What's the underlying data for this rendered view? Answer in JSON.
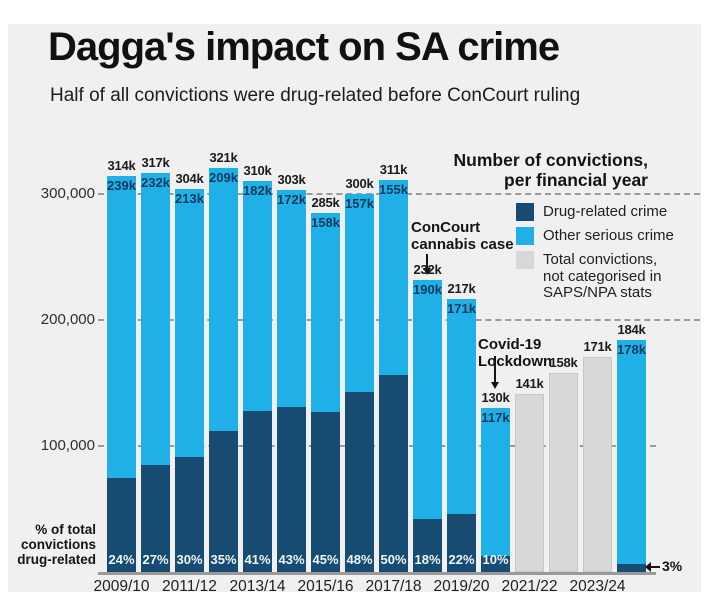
{
  "header": {
    "title": "Dagga's impact on SA crime",
    "subtitle": "Half of all convictions were drug-related before ConCourt ruling"
  },
  "chart_data": {
    "type": "bar",
    "stacked": true,
    "title": "Number of convictions,\nper financial year",
    "ylim": [
      0,
      330000
    ],
    "grid": "dashed-horizontal",
    "legend_position": "top-right",
    "colors": {
      "drug": "#174b72",
      "other": "#1fb0e8",
      "uncategorised": "#d8d8d8"
    },
    "legend": [
      {
        "label": "Drug-related crime",
        "color": "#174b72"
      },
      {
        "label": "Other serious crime",
        "color": "#1fb0e8"
      },
      {
        "label": "Total convictions,\nnot categorised in\nSAPS/NPA stats",
        "color": "#d8d8d8"
      }
    ],
    "y_ticks": [
      {
        "label": "300,000",
        "value": 300000
      },
      {
        "label": "200,000",
        "value": 200000
      },
      {
        "label": "100,000",
        "value": 100000
      }
    ],
    "x_tick_labels": [
      "2009/10",
      "2011/12",
      "2013/14",
      "2015/16",
      "2017/18",
      "2019/20",
      "2021/22",
      "2023/24"
    ],
    "left_axis_note": "% of total\nconvictions\ndrug-related",
    "bars": [
      {
        "kind": "split",
        "total": 314000,
        "total_label": "314k",
        "other": 239000,
        "other_label": "239k",
        "pct_label": "24%"
      },
      {
        "kind": "split",
        "total": 317000,
        "total_label": "317k",
        "other": 232000,
        "other_label": "232k",
        "pct_label": "27%"
      },
      {
        "kind": "split",
        "total": 304000,
        "total_label": "304k",
        "other": 213000,
        "other_label": "213k",
        "pct_label": "30%"
      },
      {
        "kind": "split",
        "total": 321000,
        "total_label": "321k",
        "other": 209000,
        "other_label": "209k",
        "pct_label": "35%"
      },
      {
        "kind": "split",
        "total": 310000,
        "total_label": "310k",
        "other": 182000,
        "other_label": "182k",
        "pct_label": "41%"
      },
      {
        "kind": "split",
        "total": 303000,
        "total_label": "303k",
        "other": 172000,
        "other_label": "172k",
        "pct_label": "43%"
      },
      {
        "kind": "split",
        "total": 285000,
        "total_label": "285k",
        "other": 158000,
        "other_label": "158k",
        "pct_label": "45%"
      },
      {
        "kind": "split",
        "total": 300000,
        "total_label": "300k",
        "other": 157000,
        "other_label": "157k",
        "pct_label": "48%"
      },
      {
        "kind": "split",
        "total": 311000,
        "total_label": "311k",
        "other": 155000,
        "other_label": "155k",
        "pct_label": "50%"
      },
      {
        "kind": "split",
        "total": 232000,
        "total_label": "232k",
        "other": 190000,
        "other_label": "190k",
        "pct_label": "18%"
      },
      {
        "kind": "split",
        "total": 217000,
        "total_label": "217k",
        "other": 171000,
        "other_label": "171k",
        "pct_label": "22%"
      },
      {
        "kind": "split",
        "total": 130000,
        "total_label": "130k",
        "other": 117000,
        "other_label": "117k",
        "pct_label": "10%"
      },
      {
        "kind": "uncategorised",
        "total": 141000,
        "total_label": "141k"
      },
      {
        "kind": "uncategorised",
        "total": 158000,
        "total_label": "158k"
      },
      {
        "kind": "uncategorised",
        "total": 171000,
        "total_label": "171k"
      },
      {
        "kind": "split",
        "total": 184000,
        "total_label": "184k",
        "other": 178000,
        "other_label": "178k",
        "pct_label": "3%",
        "pct_outside": true
      }
    ],
    "annotations": [
      {
        "text": "ConCourt\ncannabis case",
        "points_to": "232k bar"
      },
      {
        "text": "Covid-19\nLockdown",
        "points_to": "130k bar"
      }
    ]
  }
}
